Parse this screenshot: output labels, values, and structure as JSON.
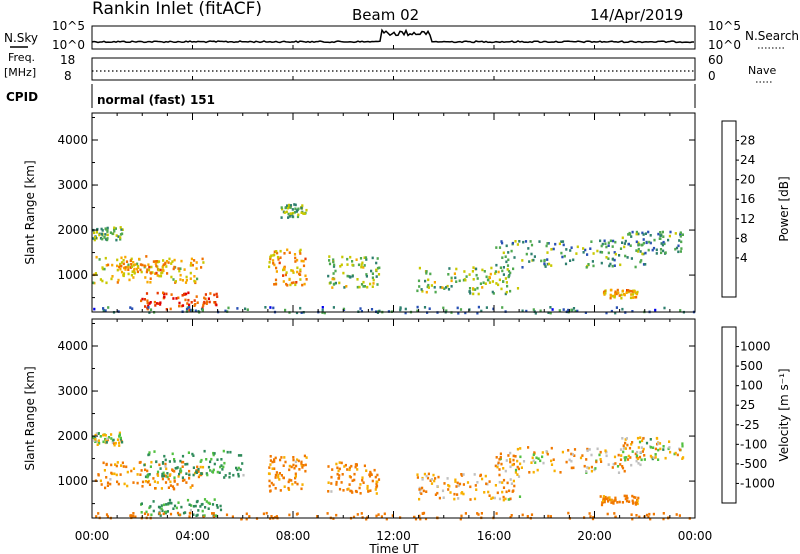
{
  "header": {
    "station": "Rankin Inlet (fitACF)",
    "beam": "Beam 02",
    "date": "14/Apr/2019"
  },
  "strip_labels": {
    "nsky": "N.Sky",
    "nsky_top": "10^5",
    "nsky_bottom": "10^0",
    "freq_top_label": "Freq.",
    "freq_unit": "[MHz]",
    "freq_top": "18",
    "freq_bottom": "8",
    "cpid": "CPID",
    "cpid_value": "normal (fast) 151",
    "nsearch": "N.Search",
    "nsearch_top": "10^5",
    "nsearch_bottom": "10^0",
    "nave": "Nave",
    "nave_top": "60",
    "nave_bottom": "0"
  },
  "panels": {
    "power": {
      "ylabel": "Slant Range [km]",
      "cbar_label": "Power [dB]",
      "cbar_ticks": [
        "28",
        "24",
        "20",
        "16",
        "12",
        "8",
        "4"
      ]
    },
    "velocity": {
      "ylabel": "Slant Range [km]",
      "cbar_label": "Velocity [m s⁻¹]",
      "cbar_ticks": [
        "1000",
        "500",
        "100",
        "25",
        "-25",
        "-100",
        "-500",
        "-1000"
      ]
    }
  },
  "axes": {
    "xlabel": "Time UT",
    "xticks": [
      "00:00",
      "04:00",
      "08:00",
      "12:00",
      "16:00",
      "20:00",
      "00:00"
    ],
    "yticks": [
      "1000",
      "2000",
      "3000",
      "4000"
    ]
  },
  "colors": {
    "power": [
      "#0000ee",
      "#2850b4",
      "#2e7f6e",
      "#4fa84f",
      "#c8c800",
      "#f8a800",
      "#f07000",
      "#e83800",
      "#e00000"
    ],
    "velocity": [
      "#1e3cb0",
      "#2a6ea0",
      "#2e8a5a",
      "#52c040",
      "#c0c0c0",
      "#f8b000",
      "#f07800",
      "#e84000",
      "#e00000"
    ]
  },
  "chart_data": [
    {
      "type": "heatmap",
      "title": "Power [dB]",
      "xlabel": "Time UT",
      "ylabel": "Slant Range [km]",
      "xlim": [
        0,
        24
      ],
      "ylim": [
        180,
        4600
      ],
      "x_unit": "hours UT",
      "colorbar": {
        "label": "Power [dB]",
        "ticks": [
          4,
          8,
          12,
          16,
          20,
          24,
          28
        ]
      },
      "echo_regions": [
        {
          "t": [
            0.0,
            1.2
          ],
          "range": [
            1800,
            2100
          ],
          "value": 12
        },
        {
          "t": [
            0.0,
            4.4
          ],
          "range": [
            850,
            1450
          ],
          "value": 18
        },
        {
          "t": [
            1.0,
            3.0
          ],
          "range": [
            1000,
            1350
          ],
          "value": 20
        },
        {
          "t": [
            1.9,
            5.1
          ],
          "range": [
            250,
            650
          ],
          "value": 26
        },
        {
          "t": [
            7.0,
            8.5
          ],
          "range": [
            800,
            1600
          ],
          "value": 20
        },
        {
          "t": [
            7.5,
            8.5
          ],
          "range": [
            2300,
            2600
          ],
          "value": 12
        },
        {
          "t": [
            9.3,
            11.4
          ],
          "range": [
            750,
            1450
          ],
          "value": 14
        },
        {
          "t": [
            12.9,
            17.0
          ],
          "range": [
            600,
            1200
          ],
          "value": 14
        },
        {
          "t": [
            16.0,
            22.0
          ],
          "range": [
            1200,
            1800
          ],
          "value": 10
        },
        {
          "t": [
            20.2,
            21.7
          ],
          "range": [
            500,
            700
          ],
          "value": 20
        },
        {
          "t": [
            21.0,
            23.5
          ],
          "range": [
            1500,
            2000
          ],
          "value": 10
        },
        {
          "t": [
            0.0,
            24.0
          ],
          "range": [
            180,
            320
          ],
          "value": 8
        }
      ]
    },
    {
      "type": "heatmap",
      "title": "Velocity [m s⁻¹]",
      "xlabel": "Time UT",
      "ylabel": "Slant Range [km]",
      "xlim": [
        0,
        24
      ],
      "ylim": [
        180,
        4600
      ],
      "x_unit": "hours UT",
      "colorbar": {
        "label": "Velocity [m s⁻¹]",
        "ticks": [
          -1000,
          -500,
          -100,
          -25,
          25,
          100,
          500,
          1000
        ]
      },
      "echo_regions": [
        {
          "t": [
            0.0,
            1.2
          ],
          "range": [
            1800,
            2100
          ],
          "value": 0
        },
        {
          "t": [
            0.0,
            4.4
          ],
          "range": [
            850,
            1450
          ],
          "value": -150
        },
        {
          "t": [
            2.0,
            6.0
          ],
          "range": [
            1100,
            1700
          ],
          "value": 150
        },
        {
          "t": [
            1.9,
            5.1
          ],
          "range": [
            250,
            650
          ],
          "value": 150
        },
        {
          "t": [
            7.0,
            8.5
          ],
          "range": [
            800,
            1600
          ],
          "value": -150
        },
        {
          "t": [
            9.3,
            11.4
          ],
          "range": [
            750,
            1450
          ],
          "value": -150
        },
        {
          "t": [
            12.9,
            17.0
          ],
          "range": [
            600,
            1200
          ],
          "value": -100
        },
        {
          "t": [
            16.0,
            22.0
          ],
          "range": [
            1200,
            1800
          ],
          "value": -80
        },
        {
          "t": [
            20.2,
            21.7
          ],
          "range": [
            500,
            700
          ],
          "value": -200
        },
        {
          "t": [
            21.0,
            23.5
          ],
          "range": [
            1500,
            2000
          ],
          "value": 0
        },
        {
          "t": [
            0.0,
            24.0
          ],
          "range": [
            180,
            320
          ],
          "value": -300
        }
      ]
    }
  ]
}
